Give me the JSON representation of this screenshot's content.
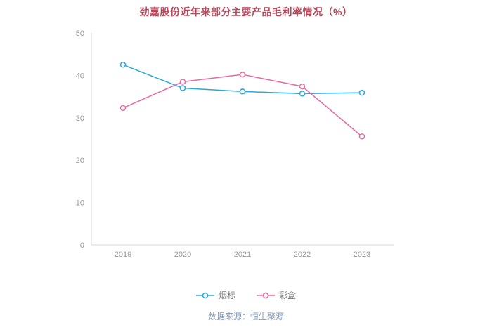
{
  "title": "劲嘉股份近年来部分主要产品毛利率情况（%）",
  "footer": "数据来源：恒生聚源",
  "colors": {
    "title": "#b5495b",
    "axis": "#d6d6d6",
    "tick_label": "#9a9a9a",
    "footer": "#8295b5",
    "series_blue": "#29a8dd",
    "series_pink": "#ea68a2"
  },
  "chart_data": {
    "type": "line",
    "categories": [
      "2019",
      "2020",
      "2021",
      "2022",
      "2023"
    ],
    "series": [
      {
        "name": "烟标",
        "color": "#29a8dd",
        "values": [
          42.5,
          37.0,
          36.2,
          35.7,
          35.9
        ]
      },
      {
        "name": "彩盒",
        "color": "#ea68a2",
        "values": [
          32.3,
          38.5,
          40.2,
          37.4,
          25.6
        ]
      }
    ],
    "ylim": [
      0,
      50
    ],
    "yticks": [
      0,
      10,
      20,
      30,
      40,
      50
    ],
    "xlabel": "",
    "ylabel": "",
    "grid": false,
    "legend_position": "bottom",
    "marker": "open-circle"
  }
}
